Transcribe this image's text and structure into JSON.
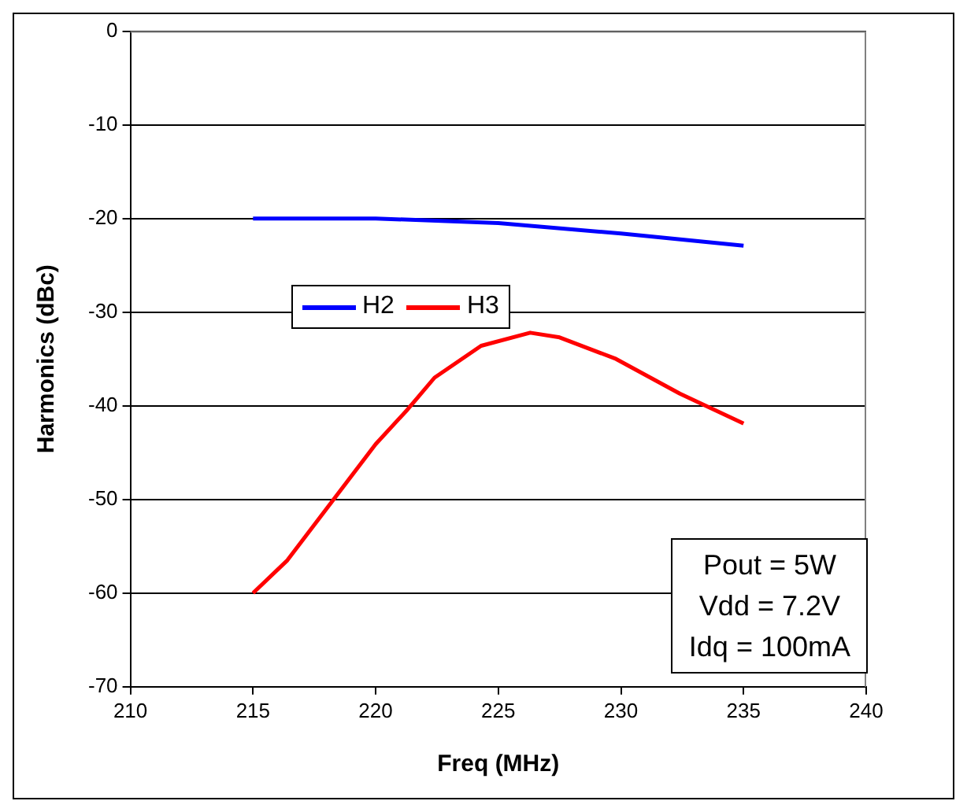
{
  "chart_data": {
    "type": "line",
    "xlabel": "Freq (MHz)",
    "ylabel": "Harmonics (dBc)",
    "xlim": [
      210,
      240
    ],
    "xticks": [
      210,
      215,
      220,
      225,
      230,
      235,
      240
    ],
    "ylim": [
      -70,
      0
    ],
    "yticks": [
      -70,
      -60,
      -50,
      -40,
      -30,
      -20,
      -10,
      0
    ],
    "grid": "y",
    "legend": "top left",
    "marker": "none",
    "line_style": "solid",
    "series": [
      {
        "name": "H2",
        "color": "#0000ff",
        "x": [
          215,
          220,
          225,
          230,
          235
        ],
        "values": [
          -20,
          -20,
          -20.5,
          -21.6,
          -22.9
        ]
      },
      {
        "name": "H3",
        "color": "#ff0000",
        "x": [
          215,
          216.4,
          218.2,
          220,
          221.3,
          222.4,
          224.3,
          226.3,
          227.5,
          229.8,
          232.4,
          235
        ],
        "values": [
          -60,
          -56.5,
          -50.3,
          -44.1,
          -40.4,
          -37,
          -33.6,
          -32.2,
          -32.7,
          -35,
          -38.7,
          -41.9
        ]
      }
    ],
    "annotations": [
      "Pout = 5W",
      "Vdd = 7.2V",
      "Idq = 100mA"
    ]
  }
}
